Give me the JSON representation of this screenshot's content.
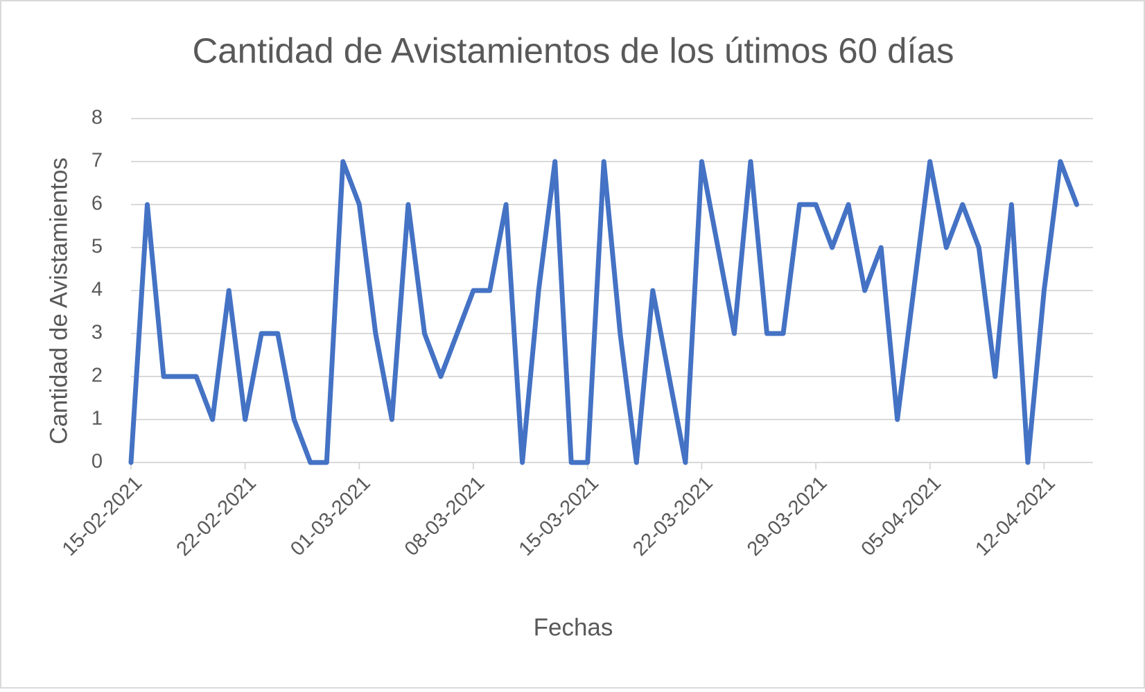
{
  "chart_data": {
    "type": "line",
    "title": "Cantidad de Avistamientos de los útimos 60 días",
    "x_label": "Fechas",
    "y_label": "Cantidad de Avistamientos",
    "x": [
      "15-02-2021",
      "16-02-2021",
      "17-02-2021",
      "18-02-2021",
      "19-02-2021",
      "20-02-2021",
      "21-02-2021",
      "22-02-2021",
      "23-02-2021",
      "24-02-2021",
      "25-02-2021",
      "26-02-2021",
      "27-02-2021",
      "28-02-2021",
      "01-03-2021",
      "02-03-2021",
      "03-03-2021",
      "04-03-2021",
      "05-03-2021",
      "06-03-2021",
      "07-03-2021",
      "08-03-2021",
      "09-03-2021",
      "10-03-2021",
      "11-03-2021",
      "12-03-2021",
      "13-03-2021",
      "14-03-2021",
      "15-03-2021",
      "16-03-2021",
      "17-03-2021",
      "18-03-2021",
      "19-03-2021",
      "20-03-2021",
      "21-03-2021",
      "22-03-2021",
      "23-03-2021",
      "24-03-2021",
      "25-03-2021",
      "26-03-2021",
      "27-03-2021",
      "28-03-2021",
      "29-03-2021",
      "30-03-2021",
      "31-03-2021",
      "01-04-2021",
      "02-04-2021",
      "03-04-2021",
      "04-04-2021",
      "05-04-2021",
      "06-04-2021",
      "07-04-2021",
      "08-04-2021",
      "09-04-2021",
      "10-04-2021",
      "11-04-2021",
      "12-04-2021",
      "13-04-2021",
      "14-04-2021"
    ],
    "values": [
      0,
      6,
      2,
      2,
      2,
      1,
      4,
      1,
      3,
      3,
      1,
      0,
      0,
      7,
      6,
      3,
      1,
      6,
      3,
      2,
      3,
      4,
      4,
      6,
      0,
      4,
      7,
      0,
      0,
      7,
      3,
      0,
      4,
      2,
      0,
      7,
      5,
      3,
      7,
      3,
      3,
      6,
      6,
      5,
      6,
      4,
      5,
      1,
      4,
      7,
      5,
      6,
      5,
      2,
      6,
      0,
      4,
      7,
      6
    ],
    "color": "#4472c4",
    "xlim": [
      "15-02-2021",
      "15-04-2021"
    ],
    "xticks": [
      "15-02-2021",
      "22-02-2021",
      "01-03-2021",
      "08-03-2021",
      "15-03-2021",
      "22-03-2021",
      "29-03-2021",
      "05-04-2021",
      "12-04-2021"
    ],
    "ylim": [
      0,
      8
    ],
    "yticks": [
      0,
      1,
      2,
      3,
      4,
      5,
      6,
      7,
      8
    ],
    "grid": true
  }
}
